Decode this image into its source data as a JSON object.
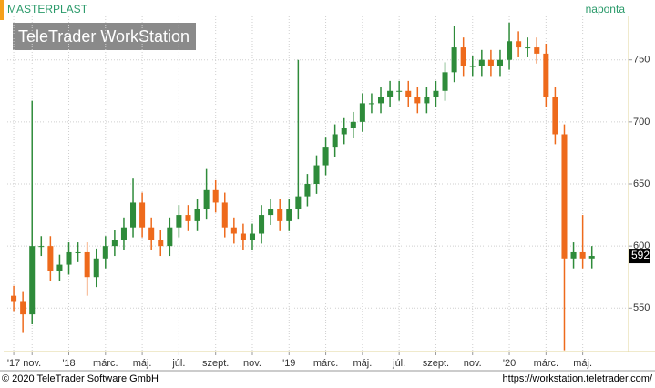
{
  "chart_data": {
    "type": "candlestick",
    "title": "MASTERPLAST",
    "interval": "naponta",
    "watermark": "TeleTrader WorkStation",
    "footer_left": "© 2020 TeleTrader Software GmbH",
    "footer_right": "https://workstation.teletrader.com/",
    "last_price": 592,
    "up_color": "#2e8b3a",
    "down_color": "#ee6a1c",
    "grid": true,
    "xlim": [
      -0.5,
      33.5
    ],
    "ylim": [
      515,
      785
    ],
    "xticks": [
      {
        "value": 0,
        "label": "'17"
      },
      {
        "value": 1,
        "label": "nov."
      },
      {
        "value": 3,
        "label": "'18"
      },
      {
        "value": 5,
        "label": "márc."
      },
      {
        "value": 7,
        "label": "máj."
      },
      {
        "value": 9,
        "label": "júl."
      },
      {
        "value": 11,
        "label": "szept."
      },
      {
        "value": 13,
        "label": "nov."
      },
      {
        "value": 15,
        "label": "'19"
      },
      {
        "value": 17,
        "label": "márc."
      },
      {
        "value": 19,
        "label": "máj."
      },
      {
        "value": 21,
        "label": "júl."
      },
      {
        "value": 23,
        "label": "szept."
      },
      {
        "value": 25,
        "label": "nov."
      },
      {
        "value": 27,
        "label": "'20"
      },
      {
        "value": 29,
        "label": "márc."
      },
      {
        "value": 31,
        "label": "máj."
      }
    ],
    "yticks": [
      550,
      600,
      650,
      700,
      750
    ],
    "x": [
      0,
      0.5,
      1,
      1.5,
      2,
      2.5,
      3,
      3.5,
      4,
      4.5,
      5,
      5.5,
      6,
      6.5,
      7,
      7.5,
      8,
      8.5,
      9,
      9.5,
      10,
      10.5,
      11,
      11.5,
      12,
      12.5,
      13,
      13.5,
      14,
      14.5,
      15,
      15.5,
      16,
      16.5,
      17,
      17.5,
      18,
      18.5,
      19,
      19.5,
      20,
      20.5,
      21,
      21.5,
      22,
      22.5,
      23,
      23.5,
      24,
      24.5,
      25,
      25.5,
      26,
      26.5,
      27,
      27.5,
      28,
      28.5,
      29,
      29.5,
      30,
      30.5,
      31,
      31.5
    ],
    "open": [
      560,
      555,
      545,
      600,
      600,
      580,
      585,
      595,
      595,
      575,
      590,
      600,
      605,
      615,
      635,
      615,
      605,
      600,
      615,
      625,
      620,
      630,
      645,
      635,
      615,
      610,
      605,
      610,
      625,
      630,
      620,
      630,
      640,
      650,
      665,
      680,
      690,
      695,
      700,
      715,
      715,
      720,
      725,
      725,
      720,
      715,
      720,
      725,
      740,
      760,
      745,
      745,
      750,
      745,
      750,
      765,
      760,
      760,
      755,
      720,
      690,
      590,
      595,
      590
    ],
    "high": [
      568,
      563,
      717,
      608,
      608,
      593,
      603,
      603,
      603,
      598,
      608,
      613,
      623,
      655,
      643,
      623,
      613,
      623,
      633,
      633,
      638,
      662,
      653,
      643,
      623,
      618,
      618,
      633,
      638,
      638,
      638,
      750,
      658,
      673,
      688,
      698,
      703,
      708,
      723,
      723,
      728,
      733,
      733,
      733,
      728,
      728,
      733,
      748,
      777,
      768,
      753,
      758,
      758,
      758,
      780,
      773,
      768,
      768,
      763,
      728,
      698,
      603,
      625,
      600
    ],
    "low": [
      547,
      530,
      537,
      592,
      572,
      572,
      577,
      587,
      560,
      567,
      582,
      592,
      597,
      607,
      607,
      597,
      592,
      592,
      607,
      612,
      612,
      622,
      627,
      607,
      602,
      597,
      597,
      602,
      617,
      612,
      612,
      622,
      632,
      642,
      657,
      672,
      682,
      687,
      692,
      707,
      707,
      712,
      717,
      712,
      707,
      707,
      712,
      717,
      732,
      737,
      737,
      737,
      737,
      737,
      742,
      752,
      752,
      747,
      712,
      682,
      516,
      582,
      582,
      582
    ],
    "close": [
      555,
      545,
      600,
      600,
      580,
      585,
      595,
      595,
      575,
      590,
      600,
      605,
      615,
      635,
      615,
      605,
      600,
      615,
      625,
      620,
      630,
      645,
      635,
      615,
      610,
      605,
      610,
      625,
      630,
      620,
      630,
      640,
      650,
      665,
      680,
      690,
      695,
      700,
      715,
      715,
      720,
      725,
      725,
      720,
      715,
      720,
      725,
      740,
      760,
      745,
      745,
      750,
      745,
      750,
      765,
      760,
      760,
      755,
      720,
      690,
      590,
      595,
      590,
      592
    ]
  }
}
